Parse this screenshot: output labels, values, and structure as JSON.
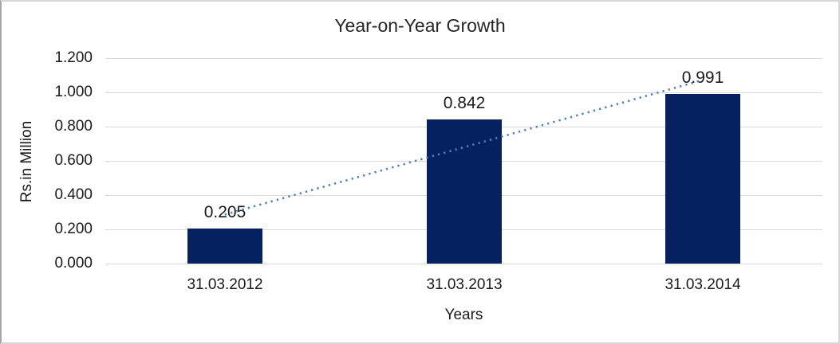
{
  "chart_data": {
    "type": "bar",
    "title": "Year-on-Year Growth",
    "xlabel": "Years",
    "ylabel": "Rs.in Million",
    "categories": [
      "31.03.2012",
      "31.03.2013",
      "31.03.2014"
    ],
    "values": [
      0.205,
      0.842,
      0.991
    ],
    "value_labels": [
      "0.205",
      "0.842",
      "0.991"
    ],
    "ylim": [
      0,
      1.2
    ],
    "ytick_labels": [
      "1.200",
      "1.000",
      "0.800",
      "0.600",
      "0.400",
      "0.200",
      "0.000"
    ],
    "grid": true,
    "legend": false,
    "bar_color": "#062160",
    "gridline_color": "#d9d9d9",
    "trendline": {
      "type": "linear",
      "style": "dotted",
      "color": "#4f81bd"
    }
  }
}
